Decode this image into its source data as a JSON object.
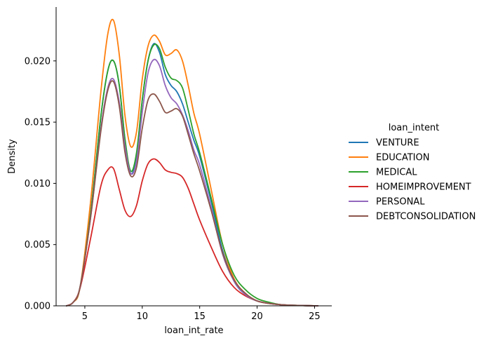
{
  "chart_data": {
    "type": "line",
    "xlabel": "loan_int_rate",
    "ylabel": "Density",
    "xlim": [
      2.5,
      26.5
    ],
    "ylim": [
      0,
      0.0244
    ],
    "xticks": [
      5,
      10,
      15,
      20,
      25
    ],
    "xtick_labels": [
      "5",
      "10",
      "15",
      "20",
      "25"
    ],
    "yticks": [
      0,
      0.005,
      0.01,
      0.015,
      0.02
    ],
    "ytick_labels": [
      "0.000",
      "0.005",
      "0.010",
      "0.015",
      "0.020"
    ],
    "grid": false,
    "legend": {
      "title": "loan_intent",
      "placement": "right"
    },
    "series": [
      {
        "name": "VENTURE",
        "color": "#1f77b4",
        "x": [
          3.4,
          4.0,
          4.6,
          5.5,
          6.4,
          7.0,
          7.5,
          8.0,
          8.5,
          9.0,
          9.5,
          10.0,
          10.5,
          11.0,
          11.5,
          12.0,
          12.5,
          13.0,
          13.5,
          14.0,
          14.5,
          15.0,
          16.0,
          17.0,
          18.0,
          19.0,
          20.0,
          21.0,
          22.0,
          23.0,
          24.0,
          25.3
        ],
        "y": [
          0.0,
          0.0003,
          0.0016,
          0.0075,
          0.0155,
          0.0192,
          0.02,
          0.018,
          0.0135,
          0.0108,
          0.0123,
          0.0168,
          0.02,
          0.0214,
          0.0207,
          0.0189,
          0.018,
          0.0175,
          0.0165,
          0.015,
          0.0135,
          0.0122,
          0.0085,
          0.0045,
          0.002,
          0.0009,
          0.0004,
          0.0002,
          0.0001,
          5e-05,
          2e-05,
          0.0
        ]
      },
      {
        "name": "EDUCATION",
        "color": "#ff7f0e",
        "x": [
          3.4,
          4.0,
          4.6,
          5.5,
          6.4,
          7.0,
          7.5,
          8.0,
          8.5,
          9.0,
          9.5,
          10.0,
          10.5,
          11.0,
          11.5,
          12.0,
          12.5,
          13.0,
          13.5,
          14.0,
          14.5,
          15.0,
          16.0,
          17.0,
          18.0,
          19.0,
          20.0,
          21.0,
          22.0,
          23.0,
          24.0,
          25.3
        ],
        "y": [
          0.0,
          0.0003,
          0.0016,
          0.0085,
          0.0175,
          0.0222,
          0.0233,
          0.0205,
          0.0155,
          0.013,
          0.0142,
          0.0185,
          0.0212,
          0.0221,
          0.0216,
          0.0205,
          0.0206,
          0.0209,
          0.02,
          0.018,
          0.0157,
          0.014,
          0.0095,
          0.005,
          0.0022,
          0.001,
          0.0004,
          0.0002,
          0.0001,
          5e-05,
          2e-05,
          0.0
        ]
      },
      {
        "name": "MEDICAL",
        "color": "#2ca02c",
        "x": [
          3.4,
          4.0,
          4.6,
          5.5,
          6.4,
          7.0,
          7.5,
          8.0,
          8.5,
          9.0,
          9.5,
          10.0,
          10.5,
          11.0,
          11.5,
          12.0,
          12.5,
          13.0,
          13.5,
          14.0,
          14.5,
          15.0,
          16.0,
          17.0,
          18.0,
          19.0,
          20.0,
          21.0,
          22.0,
          23.0,
          24.0,
          25.3
        ],
        "y": [
          0.0,
          0.0003,
          0.0016,
          0.0075,
          0.0155,
          0.0192,
          0.02,
          0.018,
          0.0136,
          0.011,
          0.0125,
          0.0168,
          0.02,
          0.0213,
          0.021,
          0.0195,
          0.0186,
          0.0184,
          0.0178,
          0.016,
          0.014,
          0.0125,
          0.0088,
          0.005,
          0.0025,
          0.0013,
          0.0006,
          0.0003,
          0.0001,
          5e-05,
          2e-05,
          0.0
        ]
      },
      {
        "name": "HOMEIMPROVEMENT",
        "color": "#d62728",
        "x": [
          3.4,
          4.0,
          4.6,
          5.5,
          6.4,
          7.0,
          7.5,
          8.0,
          8.5,
          9.0,
          9.5,
          10.0,
          10.5,
          11.0,
          11.5,
          12.0,
          12.5,
          13.0,
          13.5,
          14.0,
          14.5,
          15.0,
          16.0,
          17.0,
          18.0,
          19.0,
          20.0,
          21.0,
          22.0,
          23.0,
          24.0,
          25.3
        ],
        "y": [
          0.0,
          0.0003,
          0.0015,
          0.0055,
          0.0098,
          0.0111,
          0.0112,
          0.0095,
          0.0078,
          0.0073,
          0.0082,
          0.0102,
          0.0116,
          0.012,
          0.0117,
          0.0111,
          0.0109,
          0.0108,
          0.0105,
          0.0096,
          0.0083,
          0.007,
          0.0048,
          0.0028,
          0.0015,
          0.0008,
          0.0004,
          0.0002,
          0.0001,
          4e-05,
          2e-05,
          0.0
        ]
      },
      {
        "name": "PERSONAL",
        "color": "#9467bd",
        "x": [
          3.4,
          4.0,
          4.6,
          5.5,
          6.4,
          7.0,
          7.5,
          8.0,
          8.5,
          9.0,
          9.5,
          10.0,
          10.5,
          11.0,
          11.5,
          12.0,
          12.5,
          13.0,
          13.5,
          14.0,
          14.5,
          15.0,
          16.0,
          17.0,
          18.0,
          19.0,
          20.0,
          21.0,
          22.0,
          23.0,
          24.0,
          25.3
        ],
        "y": [
          0.0,
          0.0003,
          0.0016,
          0.0072,
          0.0145,
          0.0178,
          0.0185,
          0.0166,
          0.013,
          0.0108,
          0.0118,
          0.0158,
          0.019,
          0.0201,
          0.0196,
          0.018,
          0.017,
          0.0165,
          0.0156,
          0.0143,
          0.0127,
          0.0115,
          0.008,
          0.0042,
          0.002,
          0.0009,
          0.0004,
          0.0002,
          0.0001,
          5e-05,
          2e-05,
          0.0
        ]
      },
      {
        "name": "DEBTCONSOLIDATION",
        "color": "#8c564b",
        "x": [
          3.4,
          4.0,
          4.6,
          5.5,
          6.4,
          7.0,
          7.5,
          8.0,
          8.5,
          9.0,
          9.5,
          10.0,
          10.5,
          11.0,
          11.5,
          12.0,
          12.5,
          13.0,
          13.5,
          14.0,
          14.5,
          15.0,
          16.0,
          17.0,
          18.0,
          19.0,
          20.0,
          21.0,
          22.0,
          23.0,
          24.0,
          25.3
        ],
        "y": [
          0.0,
          0.0003,
          0.0016,
          0.0072,
          0.0143,
          0.0176,
          0.0183,
          0.0163,
          0.0125,
          0.0106,
          0.0113,
          0.0145,
          0.0168,
          0.0173,
          0.0167,
          0.0158,
          0.0159,
          0.0161,
          0.0155,
          0.014,
          0.0124,
          0.011,
          0.0078,
          0.0043,
          0.0021,
          0.001,
          0.0004,
          0.0002,
          0.0001,
          5e-05,
          2e-05,
          0.0
        ]
      }
    ]
  }
}
